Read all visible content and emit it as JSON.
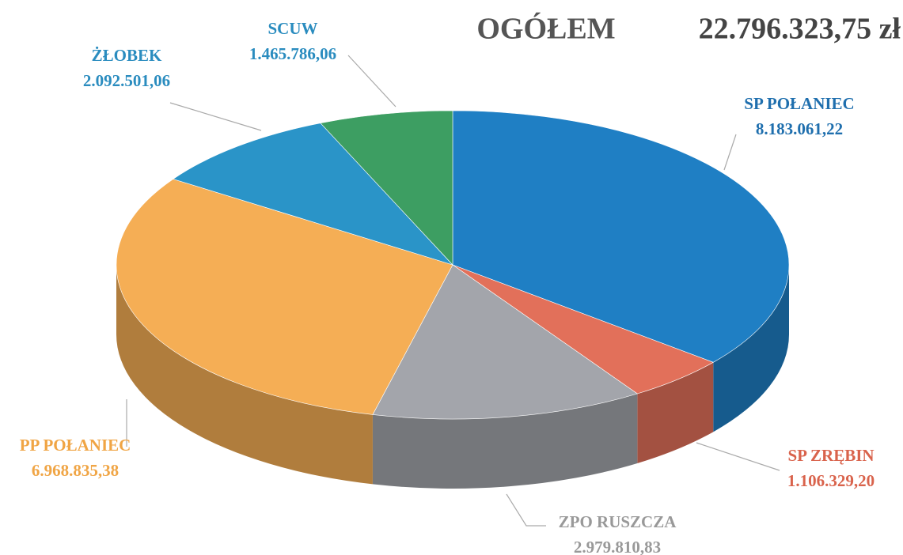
{
  "chart_data": {
    "type": "pie",
    "title": "OGÓŁEM",
    "subtitle": "22.796.323,75 zł",
    "categories": [
      "SP POŁANIEC",
      "SP ZRĘBIN",
      "ZPO RUSZCZA",
      "PP POŁANIEC",
      "ŻŁOBEK",
      "SCUW"
    ],
    "values": [
      8183061.22,
      1106329.2,
      2979810.83,
      6968835.38,
      2092501.06,
      1465786.06
    ],
    "value_labels": [
      "8.183.061,22",
      "1.106.329,20",
      "2.979.810,83",
      "6.968.835,38",
      "2.092.501,06",
      "1.465.786,06"
    ],
    "colors": [
      "#1f7fc4",
      "#e2705a",
      "#a3a5ab",
      "#f5ae55",
      "#2a94c8",
      "#3d9e62"
    ]
  }
}
